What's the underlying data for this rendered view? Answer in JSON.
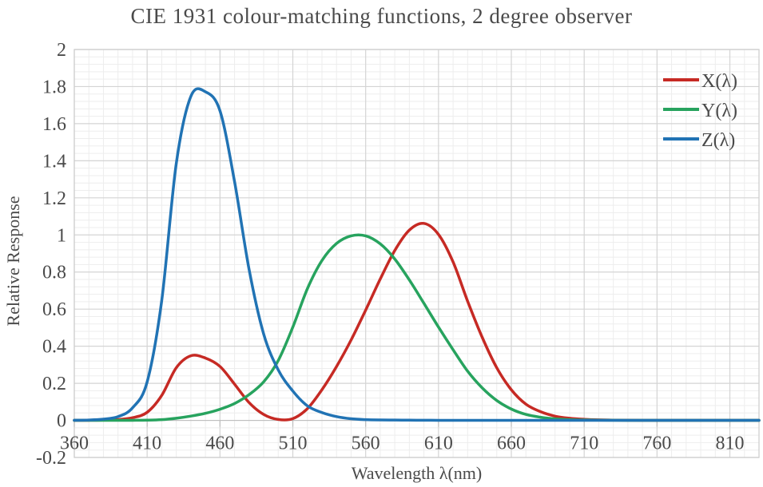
{
  "chart_data": {
    "type": "line",
    "title": "CIE 1931 colour-matching functions, 2 degree observer",
    "xlabel": "Wavelength λ(nm)",
    "ylabel": "Relative Response",
    "xlim": [
      360,
      830
    ],
    "ylim": [
      -0.2,
      2
    ],
    "x_ticks": [
      360,
      410,
      460,
      510,
      560,
      610,
      660,
      710,
      760,
      810
    ],
    "y_ticks": [
      2,
      1.8,
      1.6,
      1.4,
      1.2,
      1,
      0.8,
      0.6,
      0.4,
      0.2,
      0,
      -0.2
    ],
    "x_minor_step": 10,
    "y_minor_step": 0.04,
    "grid": "major and minor, on",
    "legend_position": "inside top-right",
    "x": [
      360,
      370,
      380,
      390,
      400,
      410,
      420,
      430,
      440,
      450,
      460,
      470,
      480,
      490,
      500,
      510,
      520,
      530,
      540,
      550,
      560,
      570,
      580,
      590,
      600,
      610,
      620,
      630,
      640,
      650,
      660,
      670,
      680,
      690,
      700,
      710,
      720,
      730,
      740,
      750,
      760,
      770,
      780,
      790,
      800,
      810,
      820,
      830
    ],
    "series": [
      {
        "name": "X(λ)",
        "color": "#c62a24",
        "values": [
          0.0001,
          0.0004,
          0.0014,
          0.0042,
          0.0143,
          0.0435,
          0.1344,
          0.2839,
          0.3483,
          0.3362,
          0.2908,
          0.1954,
          0.0956,
          0.032,
          0.0049,
          0.0093,
          0.0633,
          0.1655,
          0.2904,
          0.4334,
          0.5945,
          0.7621,
          0.9163,
          1.0263,
          1.0622,
          1.0026,
          0.8544,
          0.6424,
          0.4479,
          0.2835,
          0.1649,
          0.0874,
          0.0468,
          0.0227,
          0.0114,
          0.0058,
          0.0029,
          0.0014,
          0.0007,
          0.0003,
          0.0002,
          0.0001,
          0,
          0,
          0,
          0,
          0,
          0
        ]
      },
      {
        "name": "Y(λ)",
        "color": "#27a35e",
        "values": [
          0,
          0,
          0,
          0.0001,
          0.0004,
          0.0012,
          0.004,
          0.0116,
          0.023,
          0.038,
          0.06,
          0.091,
          0.139,
          0.208,
          0.323,
          0.503,
          0.71,
          0.862,
          0.954,
          0.995,
          0.995,
          0.952,
          0.87,
          0.757,
          0.631,
          0.503,
          0.381,
          0.265,
          0.175,
          0.107,
          0.061,
          0.032,
          0.017,
          0.0082,
          0.0041,
          0.0021,
          0.001,
          0.0005,
          0.0003,
          0.0001,
          0.0001,
          0,
          0,
          0,
          0,
          0,
          0,
          0
        ]
      },
      {
        "name": "Z(λ)",
        "color": "#2173b4",
        "values": [
          0.0006,
          0.0019,
          0.0065,
          0.0201,
          0.0679,
          0.2074,
          0.6456,
          1.3856,
          1.7471,
          1.7721,
          1.6692,
          1.2876,
          0.813,
          0.4652,
          0.272,
          0.1582,
          0.0782,
          0.0422,
          0.0203,
          0.0087,
          0.0039,
          0.0021,
          0.0017,
          0.0011,
          0.0008,
          0.0003,
          0.0002,
          0,
          0,
          0,
          0,
          0,
          0,
          0,
          0,
          0,
          0,
          0,
          0,
          0,
          0,
          0,
          0,
          0,
          0,
          0,
          0,
          0
        ]
      }
    ],
    "colors": {
      "grid_major": "#d4d4d4",
      "grid_minor": "#ededed",
      "plot_border": "#cfcfcf",
      "axis_line": "#bfbfbf",
      "text": "#4a4a4a",
      "background": "#ffffff"
    }
  }
}
